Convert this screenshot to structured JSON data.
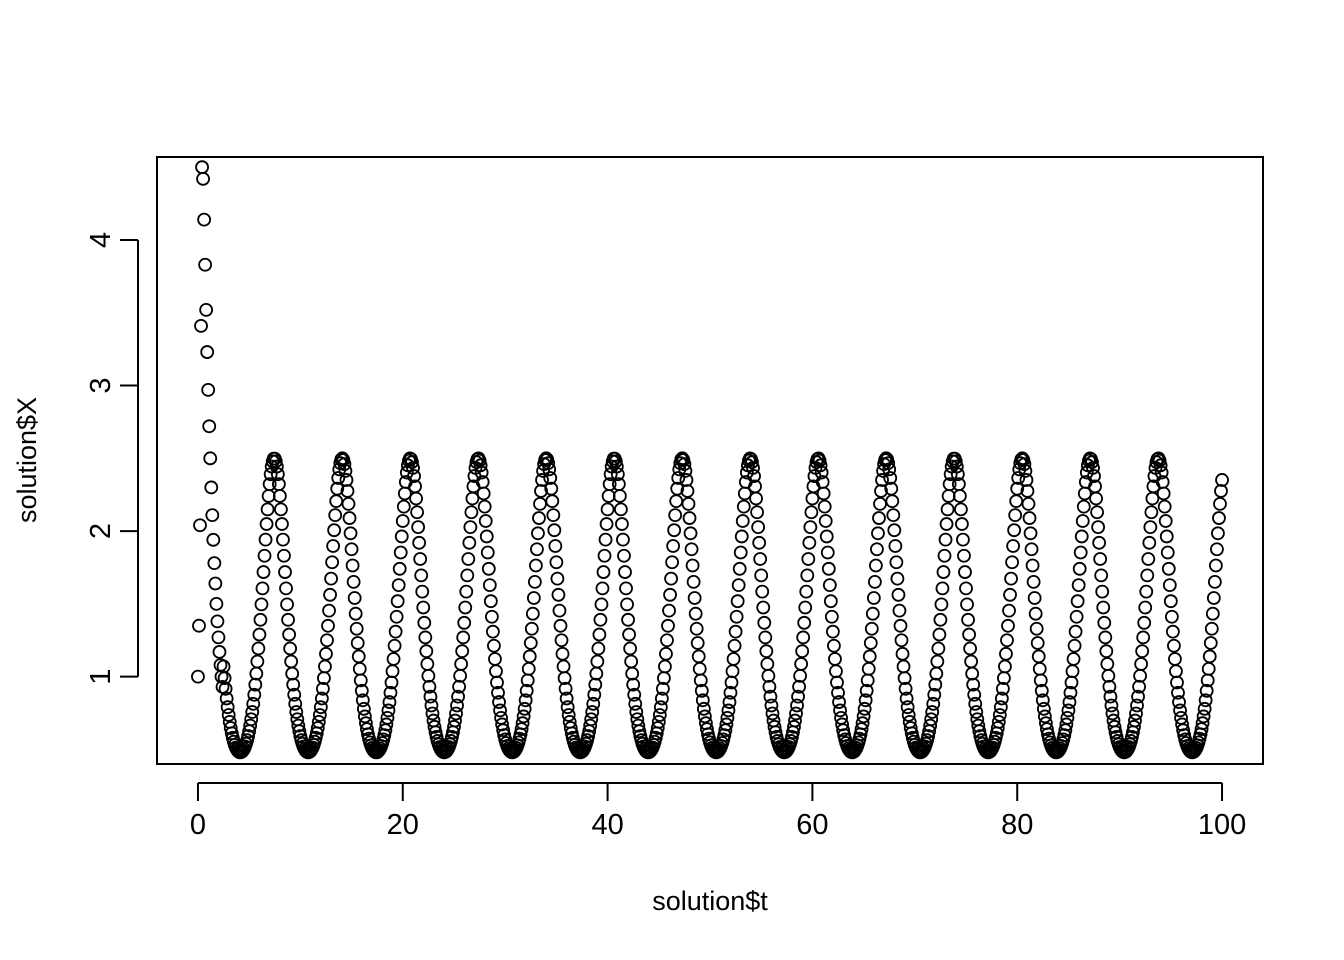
{
  "chart_data": {
    "type": "scatter",
    "title": "",
    "xlabel": "solution$t",
    "ylabel": "solution$X",
    "xlim": [
      -4,
      104
    ],
    "ylim": [
      0.4,
      4.57
    ],
    "x_ticks": [
      0,
      20,
      40,
      60,
      80,
      100
    ],
    "y_ticks": [
      1,
      2,
      3,
      4
    ],
    "marker": "open-circle",
    "grid": false,
    "legend": "none",
    "point_color": "#000000",
    "sample_step": 0.1,
    "t_range": [
      0,
      100
    ],
    "series": [
      {
        "x": [
          0,
          0.1,
          0.2,
          0.3,
          0.4,
          0.5,
          0.6,
          0.7,
          0.8,
          0.9,
          1.0,
          1.1,
          1.2,
          1.3,
          1.4,
          1.5,
          1.6,
          1.7,
          1.8,
          1.9,
          2.0,
          2.1,
          2.2,
          2.3,
          2.4
        ],
        "y": [
          1.0,
          1.35,
          2.04,
          3.41,
          4.5,
          4.42,
          4.14,
          3.83,
          3.52,
          3.23,
          2.97,
          2.72,
          2.5,
          2.3,
          2.11,
          1.94,
          1.78,
          1.64,
          1.5,
          1.38,
          1.27,
          1.17,
          1.08,
          1.0,
          0.93
        ]
      }
    ],
    "cycle": {
      "period": 6.64,
      "first_peak_t": 7.45,
      "peak_value": 2.5,
      "min_value": 0.48
    }
  }
}
